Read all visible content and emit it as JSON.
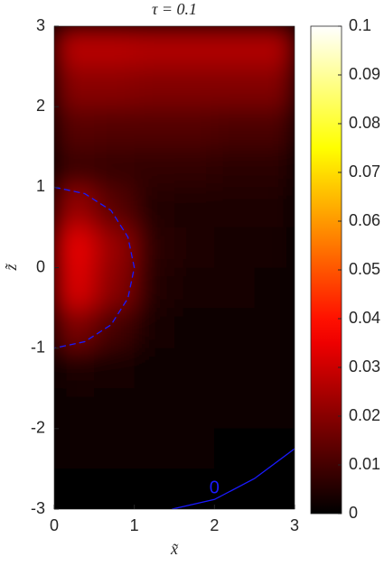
{
  "chart_data": {
    "type": "heatmap",
    "title": "τ = 0.1",
    "xlabel": "x̃",
    "ylabel": "z̃",
    "colormap": "hot",
    "x": [
      0.25,
      0.75,
      1.25,
      1.75,
      2.25,
      2.75
    ],
    "y": [
      2.75,
      2.25,
      1.75,
      1.25,
      0.75,
      0.25,
      -0.25,
      -0.75,
      -1.25,
      -1.75,
      -2.25,
      -2.75
    ],
    "z": [
      [
        0.027,
        0.027,
        0.026,
        0.026,
        0.026,
        0.026
      ],
      [
        0.02,
        0.02,
        0.019,
        0.019,
        0.019,
        0.019
      ],
      [
        0.013,
        0.012,
        0.012,
        0.012,
        0.011,
        0.011
      ],
      [
        0.009,
        0.008,
        0.007,
        0.007,
        0.006,
        0.006
      ],
      [
        0.022,
        0.013,
        0.005,
        0.004,
        0.004,
        0.004
      ],
      [
        0.034,
        0.022,
        0.006,
        0.004,
        0.003,
        0.003
      ],
      [
        0.032,
        0.02,
        0.005,
        0.003,
        0.003,
        0.002
      ],
      [
        0.018,
        0.01,
        0.003,
        0.002,
        0.002,
        0.002
      ],
      [
        0.004,
        0.003,
        0.002,
        0.002,
        0.001,
        0.001
      ],
      [
        0.002,
        0.002,
        0.001,
        0.001,
        0.001,
        0.001
      ],
      [
        0.001,
        0.001,
        0.001,
        0.001,
        0.0005,
        0.0005
      ],
      [
        0.0005,
        0.0005,
        0,
        0,
        0,
        0
      ]
    ],
    "xlim": [
      0,
      3
    ],
    "xticks": [
      0,
      1,
      2,
      3
    ],
    "ylim": [
      -3,
      3
    ],
    "yticks": [
      -3,
      -2,
      -1,
      0,
      1,
      2,
      3
    ],
    "clim": [
      0,
      0.1
    ],
    "cticks": [
      0,
      0.01,
      0.02,
      0.03,
      0.04,
      0.05,
      0.06,
      0.07,
      0.08,
      0.09,
      0.1
    ],
    "contours": [
      {
        "color": "#1a1aff",
        "dashed": true,
        "x": [
          0,
          0.38,
          0.71,
          0.92,
          1,
          0.92,
          0.71,
          0.38,
          0
        ],
        "y": [
          1,
          0.92,
          0.71,
          0.38,
          0,
          -0.38,
          -0.71,
          -0.92,
          -1
        ]
      },
      {
        "color": "#1a1aff",
        "dashed": false,
        "label": "0",
        "x": [
          1.47,
          2,
          2.5,
          3
        ],
        "y": [
          -3,
          -2.88,
          -2.62,
          -2.25
        ]
      }
    ]
  }
}
